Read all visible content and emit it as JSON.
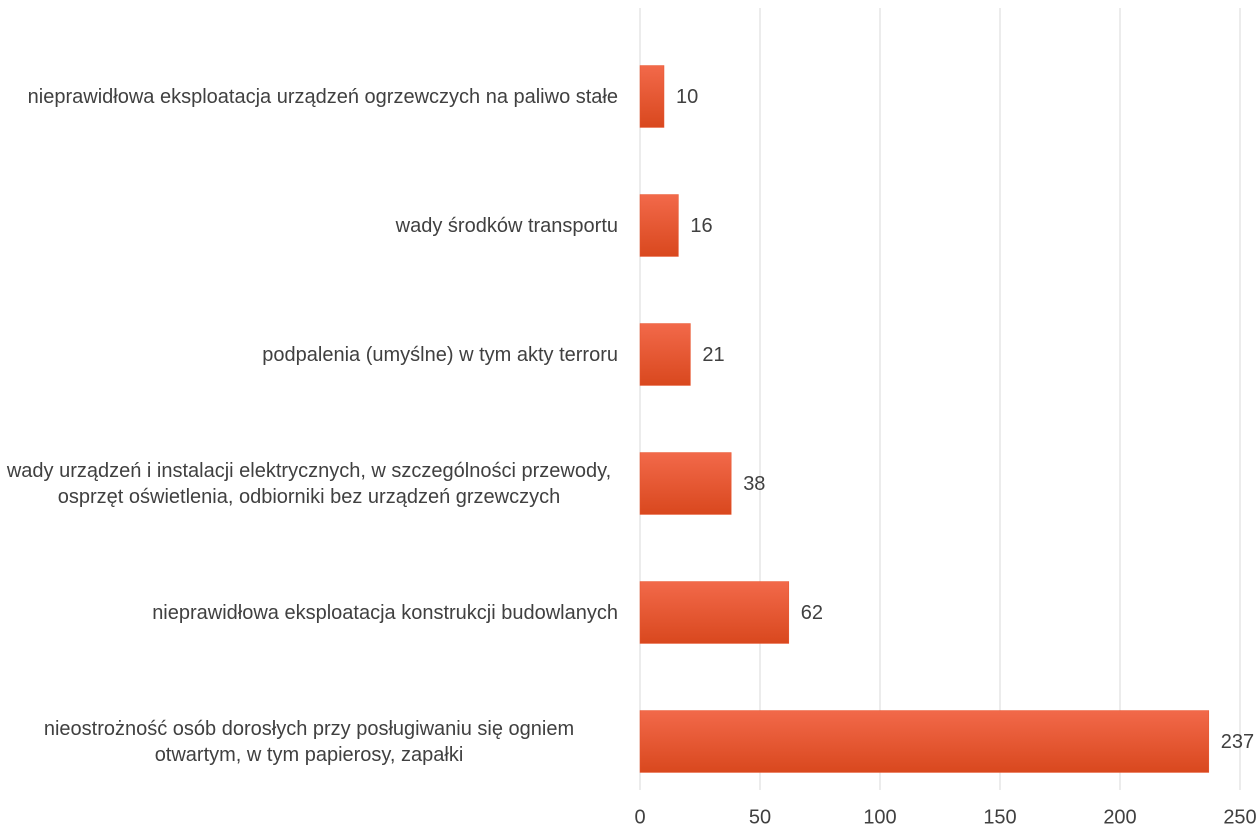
{
  "chart_data": {
    "type": "barh",
    "categories": [
      "nieprawidłowa eksploatacja urządzeń ogrzewczych na paliwo stałe",
      "wady środków transportu",
      "podpalenia (umyślne) w tym akty terroru",
      "wady urządzeń i instalacji elektrycznych, w szczególności przewody, osprzęt oświetlenia, odbiorniki bez urządzeń grzewczych",
      "nieprawidłowa eksploatacja konstrukcji budowlanych",
      "nieostrożność osób dorosłych przy posługiwaniu się ogniem otwartym, w tym papierosy, zapałki"
    ],
    "values": [
      10,
      16,
      21,
      38,
      62,
      237
    ],
    "color": "#e8532b",
    "xlim": [
      0,
      250
    ],
    "xticks": [
      0,
      50,
      100,
      150,
      200,
      250
    ],
    "grid": true
  }
}
